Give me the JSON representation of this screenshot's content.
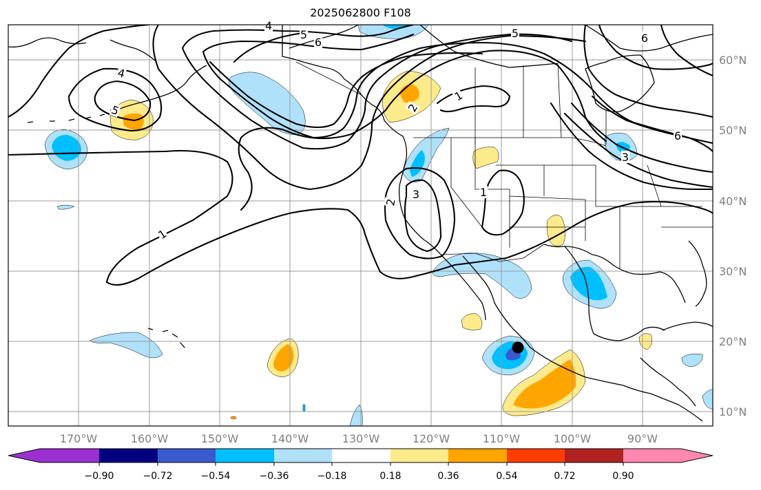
{
  "title": "2025062800 F108",
  "map": {
    "lon_labels": [
      "170°W",
      "160°W",
      "150°W",
      "140°W",
      "130°W",
      "120°W",
      "110°W",
      "100°W",
      "90°W"
    ],
    "lat_labels": [
      "60°N",
      "50°N",
      "40°N",
      "30°N",
      "20°N",
      "10°N"
    ],
    "contour_labels": [
      "1",
      "1",
      "1",
      "2",
      "2",
      "3",
      "3",
      "4",
      "4",
      "5",
      "5",
      "5",
      "6",
      "6",
      "6"
    ],
    "storm_marker": "black dot off SW Mexico coast"
  },
  "colorbar": {
    "colors": [
      "#9b30d0",
      "#000080",
      "#3a5bcf",
      "#00bfff",
      "#afe1fb",
      "#ffffff",
      "#fdea8a",
      "#ffa500",
      "#ff3d00",
      "#b22222",
      "#ff88b0"
    ],
    "tick_labels": [
      "−0.90",
      "−0.72",
      "−0.54",
      "−0.36",
      "−0.18",
      "0.18",
      "0.36",
      "0.54",
      "0.72",
      "0.90"
    ]
  },
  "legend_colors": {
    "neg_light": "#afe1fb",
    "neg_mid": "#00bfff",
    "neg_dark": "#3a5bcf",
    "pos_light": "#fdea8a",
    "pos_mid": "#ffa500"
  }
}
